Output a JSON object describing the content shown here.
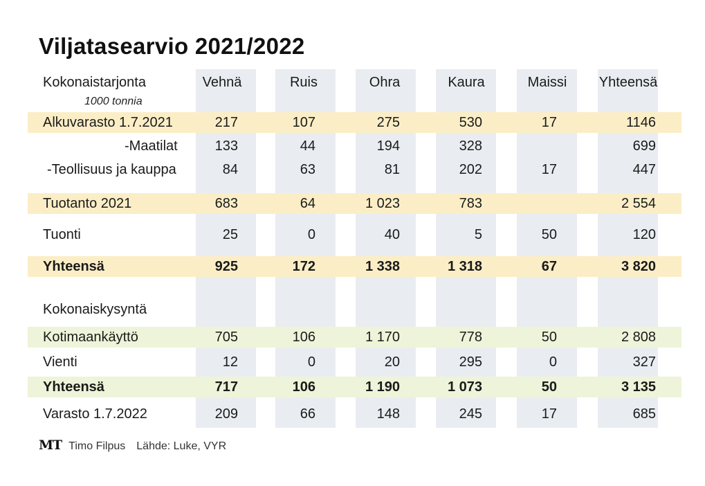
{
  "title": "Viljatasearvio 2021/2022",
  "colors": {
    "column_bg": "#e9edf1",
    "yellow_band": "#fbeec6",
    "green_band": "#eef4d9"
  },
  "chart_data": {
    "type": "table",
    "columns": [
      "Vehnä",
      "Ruis",
      "Ohra",
      "Kaura",
      "Maissi",
      "Yhteensä"
    ],
    "sections": [
      {
        "header": "Kokonaistarjonta",
        "unit": "1000 tonnia",
        "rows": [
          {
            "label": "Alkuvarasto 1.7.2021",
            "values": [
              "217",
              "107",
              "275",
              "530",
              "17",
              "1146"
            ],
            "highlight": "yellow"
          },
          {
            "label": "-Maatilat",
            "values": [
              "133",
              "44",
              "194",
              "328",
              "",
              "699"
            ]
          },
          {
            "label": "-Teollisuus ja kauppa",
            "values": [
              "84",
              "63",
              "81",
              "202",
              "17",
              "447"
            ]
          },
          {
            "label": "Tuotanto 2021",
            "values": [
              "683",
              "64",
              "1 023",
              "783",
              "",
              "2 554"
            ],
            "highlight": "yellow"
          },
          {
            "label": "Tuonti",
            "values": [
              "25",
              "0",
              "40",
              "5",
              "50",
              "120"
            ]
          },
          {
            "label": "Yhteensä",
            "values": [
              "925",
              "172",
              "1 338",
              "1 318",
              "67",
              "3 820"
            ],
            "highlight": "yellow",
            "bold": true
          }
        ]
      },
      {
        "header": "Kokonaiskysyntä",
        "rows": [
          {
            "label": "Kotimaankäyttö",
            "values": [
              "705",
              "106",
              "1 170",
              "778",
              "50",
              "2 808"
            ],
            "highlight": "green"
          },
          {
            "label": "Vienti",
            "values": [
              "12",
              "0",
              "20",
              "295",
              "0",
              "327"
            ]
          },
          {
            "label": "Yhteensä",
            "values": [
              "717",
              "106",
              "1 190",
              "1 073",
              "50",
              "3 135"
            ],
            "highlight": "green",
            "bold": true
          },
          {
            "label": "Varasto 1.7.2022",
            "values": [
              "209",
              "66",
              "148",
              "245",
              "17",
              "685"
            ]
          }
        ]
      }
    ]
  },
  "footer": {
    "logo": "MT",
    "author": "Timo Filpus",
    "source": "Lähde: Luke, VYR"
  }
}
